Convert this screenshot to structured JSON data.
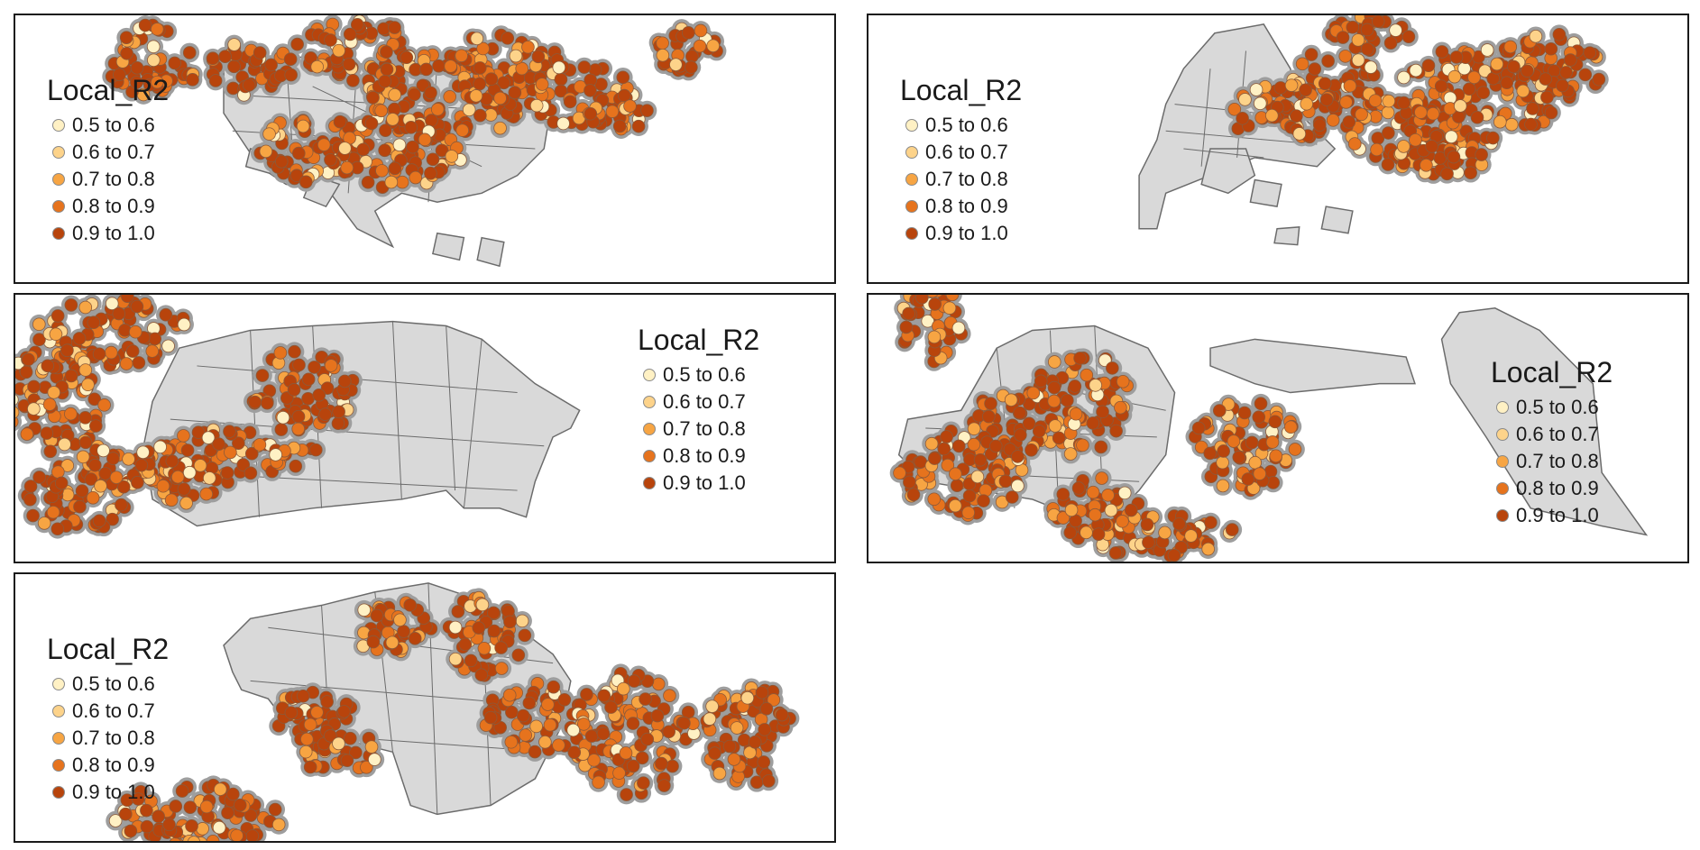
{
  "legend": {
    "title": "Local_R2",
    "classes": [
      {
        "label": "0.5 to 0.6",
        "color": "#fff1c4"
      },
      {
        "label": "0.6 to 0.7",
        "color": "#fdd38a"
      },
      {
        "label": "0.7 to 0.8",
        "color": "#f7a543"
      },
      {
        "label": "0.8 to 0.9",
        "color": "#e6731d"
      },
      {
        "label": "0.9 to 1.0",
        "color": "#b8440c"
      }
    ]
  },
  "colors": {
    "land": "#d9d9d9",
    "boundary": "#6b6b6b",
    "point_halo": "#9e9e9e",
    "frame": "#1a1a1a"
  },
  "panels": [
    {
      "id": "panel-1"
    },
    {
      "id": "panel-2"
    },
    {
      "id": "panel-3"
    },
    {
      "id": "panel-4"
    },
    {
      "id": "panel-5"
    }
  ]
}
